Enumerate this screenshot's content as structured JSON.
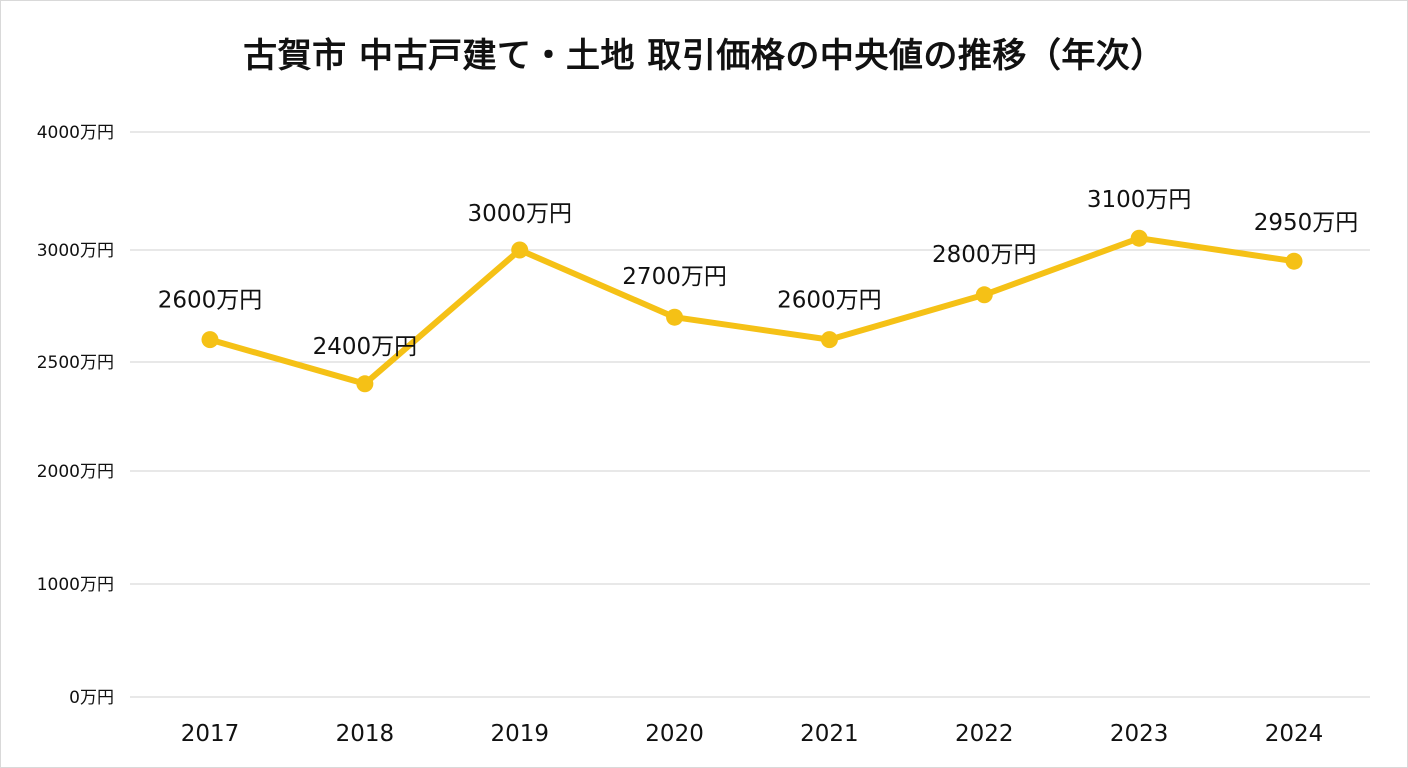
{
  "chart_data": {
    "type": "line",
    "title": "古賀市 中古戸建て・土地 取引価格の中央値の推移（年次）",
    "xlabel": "",
    "ylabel": "",
    "categories": [
      "2017",
      "2018",
      "2019",
      "2020",
      "2021",
      "2022",
      "2023",
      "2024"
    ],
    "series": [
      {
        "values": [
          2600,
          2400,
          3000,
          2700,
          2600,
          2800,
          3100,
          2950
        ],
        "labels": [
          "2600万円",
          "2400万円",
          "3000万円",
          "2700万円",
          "2600万円",
          "2800万円",
          "3100万円",
          "2950万円"
        ],
        "color": "#F5C116"
      }
    ],
    "y_ticks": [
      {
        "value": 0,
        "label": "0万円"
      },
      {
        "value": 1000,
        "label": "1000万円"
      },
      {
        "value": 2000,
        "label": "2000万円"
      },
      {
        "value": 2500,
        "label": "2500万円"
      },
      {
        "value": 3000,
        "label": "3000万円"
      },
      {
        "value": 4000,
        "label": "4000万円"
      }
    ],
    "ylim": [
      0,
      4000
    ],
    "grid": true,
    "legend": "none",
    "gridline_color": "#d9d9d9"
  }
}
